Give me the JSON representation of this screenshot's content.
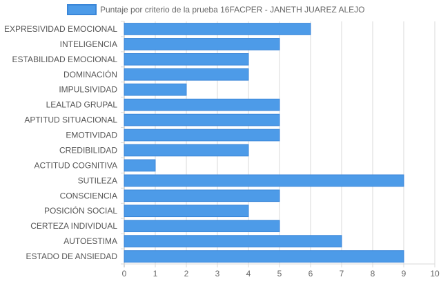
{
  "chart_data": {
    "type": "bar",
    "orientation": "horizontal",
    "legend": {
      "position": "top",
      "entries": [
        "Puntaje por criterio de la prueba 16FACPER - JANETH JUAREZ ALEJO"
      ]
    },
    "categories": [
      "EXPRESIVIDAD EMOCIONAL",
      "INTELIGENCIA",
      "ESTABILIDAD EMOCIONAL",
      "DOMINACIÓN",
      "IMPULSIVIDAD",
      "LEALTAD GRUPAL",
      "APTITUD SITUACIONAL",
      "EMOTIVIDAD",
      "CREDIBILIDAD",
      "ACTITUD COGNITIVA",
      "SUTILEZA",
      "CONSCIENCIA",
      "POSICIÓN SOCIAL",
      "CERTEZA INDIVIDUAL",
      "AUTOESTIMA",
      "ESTADO DE ANSIEDAD"
    ],
    "series": [
      {
        "name": "Puntaje por criterio de la prueba 16FACPER - JANETH JUAREZ ALEJO",
        "values": [
          6,
          5,
          4,
          4,
          2,
          5,
          5,
          5,
          4,
          1,
          9,
          5,
          4,
          5,
          7,
          9
        ]
      }
    ],
    "xlim": [
      0,
      10
    ],
    "xticks": [
      "0",
      "1",
      "2",
      "3",
      "4",
      "5",
      "6",
      "7",
      "8",
      "9",
      "10"
    ],
    "grid": true,
    "colors": {
      "bar_fill": "#4d9be8",
      "bar_stroke": "#3a86d8",
      "grid": "#d9d9d9",
      "axis": "#b3b3b3"
    }
  }
}
